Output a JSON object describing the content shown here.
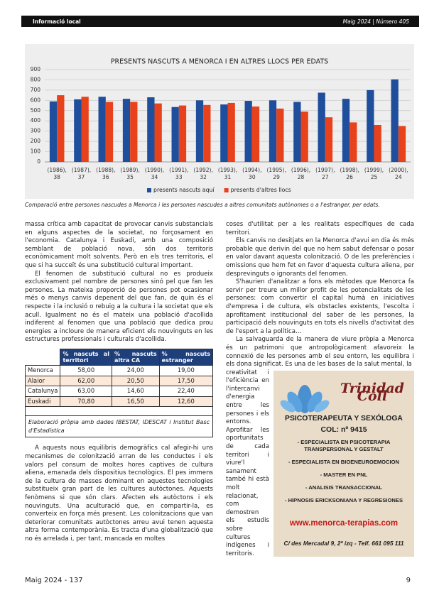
{
  "header": {
    "section": "Informació local",
    "issue": "Maig 2024 | Número 405"
  },
  "chart_data": {
    "type": "bar",
    "title": "PRESENTS NASCUTS A MENORCA I EN ALTRES LLOCS PER EDATS",
    "categories": [
      [
        "(1986),",
        "38"
      ],
      [
        "(1987),",
        "37"
      ],
      [
        "(1988),",
        "36"
      ],
      [
        "(1989),",
        "35"
      ],
      [
        "(1990),",
        "34"
      ],
      [
        "(1991),",
        "33"
      ],
      [
        "(1992),",
        "32"
      ],
      [
        "(1993),",
        "31"
      ],
      [
        "(1994),",
        "30"
      ],
      [
        "(1995),",
        "29"
      ],
      [
        "(1996),",
        "28"
      ],
      [
        "(1997),",
        "27"
      ],
      [
        "(1998),",
        "26"
      ],
      [
        "(1999),",
        "25"
      ],
      [
        "(2000),",
        "24"
      ]
    ],
    "series": [
      {
        "name": "presents nascuts aquí",
        "color": "#1f4e9c",
        "values": [
          590,
          610,
          635,
          615,
          630,
          535,
          600,
          560,
          595,
          600,
          585,
          675,
          615,
          700,
          805
        ]
      },
      {
        "name": "presents d'altres llocs",
        "color": "#e8421c",
        "values": [
          650,
          635,
          585,
          585,
          570,
          550,
          555,
          575,
          540,
          520,
          490,
          435,
          385,
          360,
          350
        ]
      }
    ],
    "ylim": [
      0,
      900
    ],
    "yticks": [
      0,
      100,
      200,
      300,
      400,
      500,
      600,
      700,
      800,
      900
    ],
    "grid": true,
    "legend": "bottom"
  },
  "caption": "Comparació entre persones nascudes a Menorca i les persones nascudes a altres comunitats autònomes o a l'estranger, per edats.",
  "left": [
    "massa crítica amb capacitat de provocar canvis substancials en alguns aspectes de la societat, no forçosament en l'economia. Catalunya i Euskadi, amb una composició semblant de població nova, són dos territoris econòmicament molt solvents. Però en els tres territoris, el que si ha succeït és una substitució cultural important.",
    "El fenomen de substitució cultural no es produeix exclusivament pel nombre de persones sinó pel que fan les persones. La mateixa proporció de persones pot ocasionar més o menys canvis depenent del que fan, de quin és el respecte i la inclusió o rebuig a la cultura i la societat que els acull. Igualment no és el mateix una població d'acollida indiferent al fenomen que una població que dedica prou energies a incloure de manera eficient els nouvinguts en les estructures professionals i culturals d'acollida.",
    "A aquests nous equilibris demogràfics cal afegir-hi uns mecanismes de colonització arran de les conductes i els valors pel consum de moltes hores captives de cultura aliena, emanada dels dispositius tecnològics. El pes immens de la cultura de masses dominant en aquestes tecnologies substitueix gran part de les cultures autòctones. Aquests fenòmens si que són clars. Afecten els autòctons i els nouvinguts. Una aculturació que, en compartir-la, es converteix en força més present. Les colonitzacions que van deteriorar comunitats autòctones arreu avui tenen aquesta altra forma contemporània. Es tracta d'una globalització que no és arrelada i, per tant, mancada en moltes"
  ],
  "table": {
    "header": [
      "% nascuts al territori",
      "% nascuts altra CA",
      "% nascuts estranger"
    ],
    "rows": [
      [
        "Menorca",
        "58,00",
        "24,00",
        "19,00"
      ],
      [
        "Alaior",
        "62,00",
        "20,50",
        "17,50"
      ],
      [
        "Catalunya",
        "63,00",
        "14,60",
        "22,40"
      ],
      [
        "Euskadi",
        "70,80",
        "16,50",
        "12,60"
      ]
    ],
    "note": "Elaboració pròpia amb dades IBESTAT, IDESCAT i Institut Basc d'Estadística"
  },
  "right": [
    "coses d'utilitat per a les realitats específiques de cada territori.",
    "Els canvis no desitjats en la Menorca d'avui en dia és més probable que derivin del que no hem sabut defensar o posar en valor davant aquesta colonització. O de les preferències i omissions que hem fet en favor d'aquesta cultura aliena, per desprevinguts o ignorants del fenomen.",
    "S'haurien d'analitzar a fons els mètodes que Menorca fa servir per treure un millor profit de les potencialitats de les persones: com convertir el capital humà en iniciatives d'empresa i de cultura, els obstacles existents, l'escolta i aprofitament institucional del saber de les persones, la participació dels nouvinguts en tots els nivells d'activitat des de l'esport a la política…",
    "La salvaguarda de la manera de viure pròpia a Menorca és un patrimoni que antropològicament afavoreix la connexió de les persones amb el seu entorn, les equilibra i els dona significat. Es una de les bases de la salut mental, la",
    "creativitat i l'eficiència en l'intercanvi d'energia entre les persones i els entorns. Aprofitar les oportunitats de cada territori i viure'l sanament també hi està molt relacionat, com demostren els estudis sobre cultures indígenes i territoris."
  ],
  "ad": {
    "name": "Trinidad Coll",
    "line1": "PSICOTERAPEUTA Y SEXÓLOGA",
    "line2": "COL: nº 9415",
    "items": [
      "- ESPECIALISTA EN PSICOTERAPIA TRANSPERSONAL Y GESTALT",
      "- ESPECIALISTA EN BIOENEUROEMOCION",
      "- MASTER EN PNL",
      "- ANALISIS TRANSACCIONAL",
      "- HIPNOSIS ERICKSONIANA Y REGRESIONES"
    ],
    "web": "www.menorca-terapias.com",
    "address": "C/ des Mercadal 9, 2º izq - Telf. 661 095 111"
  },
  "footer": {
    "left": "Maig 2024 - 137",
    "page": "9"
  }
}
